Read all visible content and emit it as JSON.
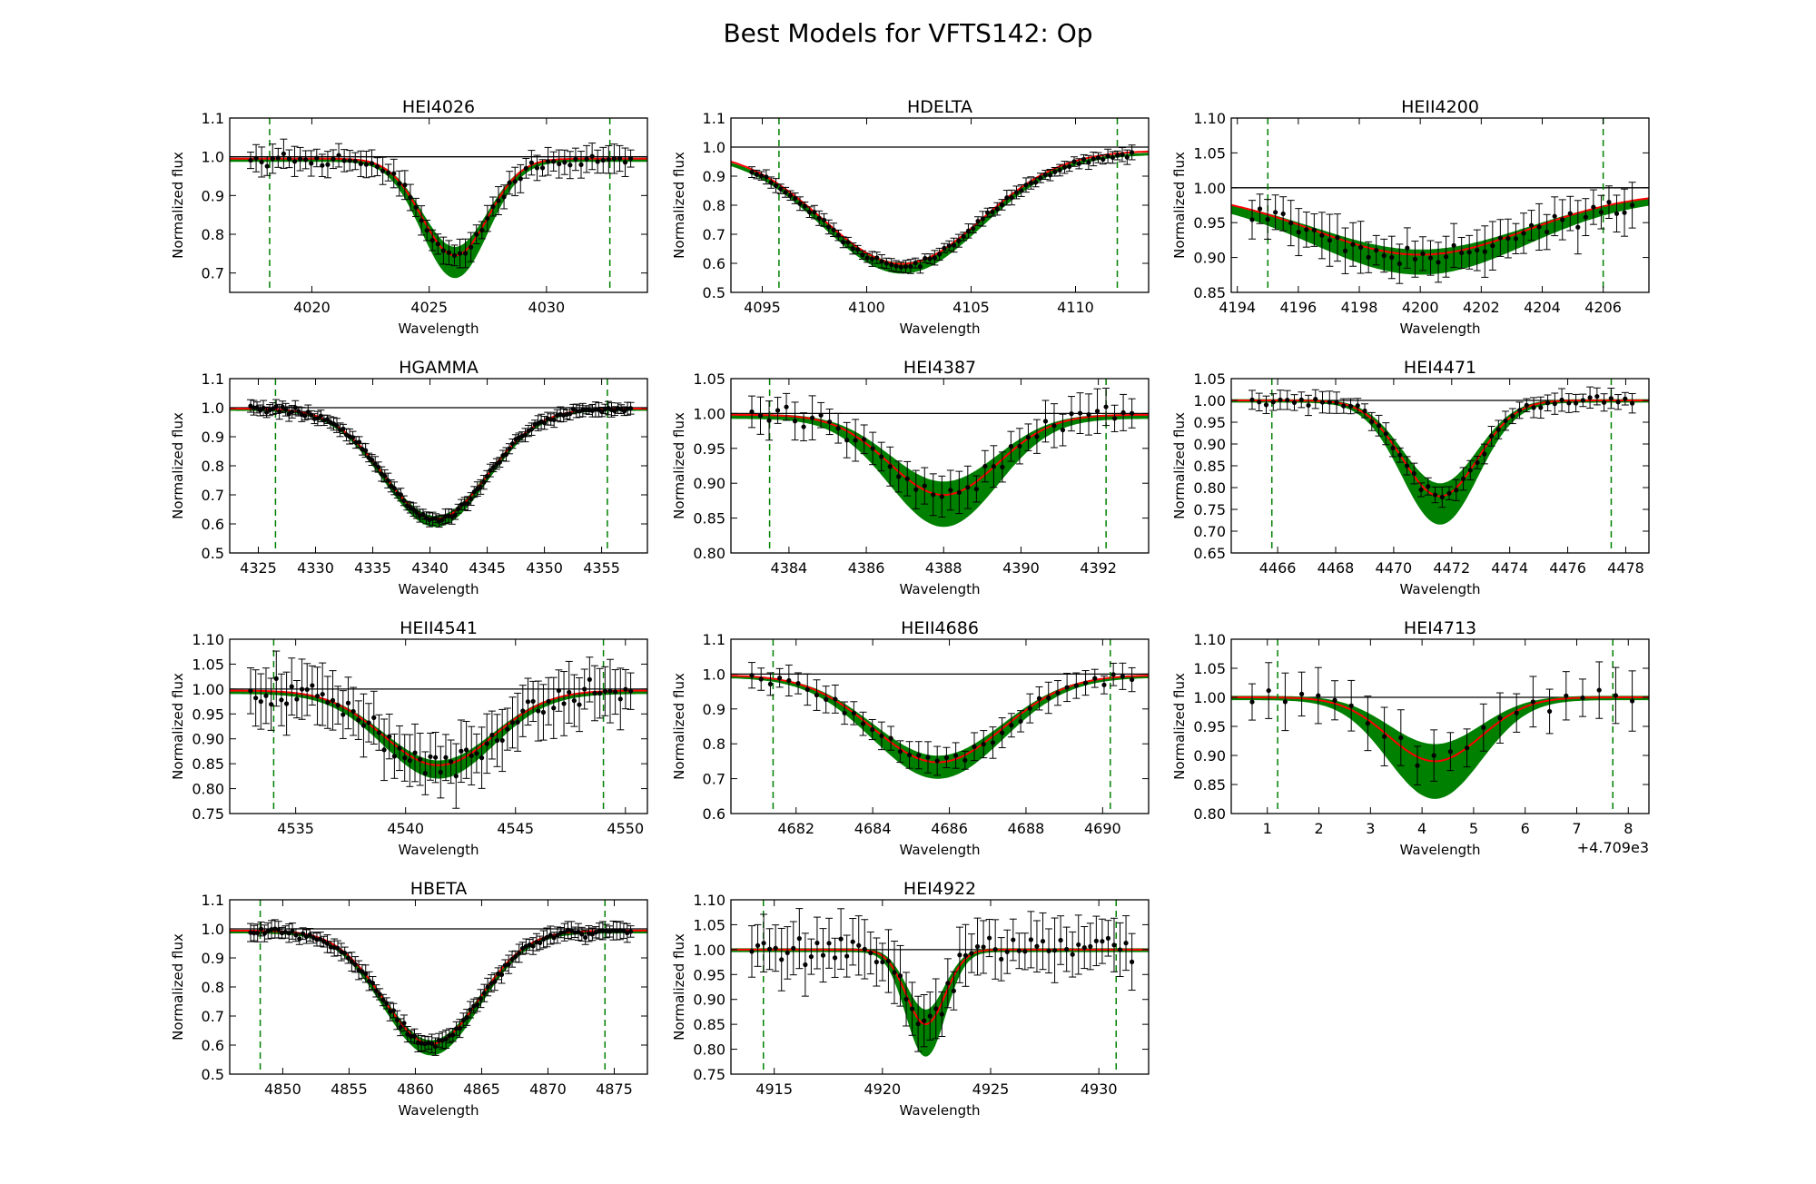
{
  "figure": {
    "title": "Best Models for VFTS142: Op"
  },
  "colors": {
    "model": "#ff0000",
    "envelope": "#008000",
    "data": "#000000",
    "window": "#008000",
    "continuum": "#000000"
  },
  "chart_data": [
    {
      "type": "line",
      "title": "HEI4026",
      "xlabel": "Wavelength",
      "ylabel": "Normalized flux",
      "xlim": [
        4016.5,
        4034.3
      ],
      "ylim": [
        0.65,
        1.1
      ],
      "xticks": [
        4020,
        4025,
        4030
      ],
      "xtick_labels": [
        "4020",
        "4025",
        "4030"
      ],
      "yticks": [
        0.7,
        0.8,
        0.9,
        1.0,
        1.1
      ],
      "ytick_labels": [
        "0.7",
        "0.8",
        "0.9",
        "1.0",
        "1.1"
      ],
      "window": [
        4018.2,
        4032.7
      ],
      "center": 4026.1,
      "depth": 0.25,
      "width": 1.4,
      "env": 0.05,
      "err": 0.03,
      "offset": 0.008,
      "n": 70
    },
    {
      "type": "line",
      "title": "HDELTA",
      "xlabel": "Wavelength",
      "ylabel": "Normalized flux",
      "xlim": [
        4093.5,
        4113.5
      ],
      "ylim": [
        0.5,
        1.1
      ],
      "xticks": [
        4095,
        4100,
        4105,
        4110
      ],
      "xtick_labels": [
        "4095",
        "4100",
        "4105",
        "4110"
      ],
      "yticks": [
        0.5,
        0.6,
        0.7,
        0.8,
        0.9,
        1.0,
        1.1
      ],
      "ytick_labels": [
        "0.5",
        "0.6",
        "0.7",
        "0.8",
        "0.9",
        "1.0",
        "1.1"
      ],
      "window": [
        4095.8,
        4112.0
      ],
      "center": 4101.7,
      "depth": 0.39,
      "width": 3.8,
      "env": 0.02,
      "err": 0.02,
      "offset": 0.02,
      "n": 80
    },
    {
      "type": "line",
      "title": "HEII4200",
      "xlabel": "Wavelength",
      "ylabel": "Normalized flux",
      "xlim": [
        4193.8,
        4207.5
      ],
      "ylim": [
        0.85,
        1.1
      ],
      "xticks": [
        4194,
        4196,
        4198,
        4200,
        4202,
        4204,
        4206
      ],
      "xtick_labels": [
        "4194",
        "4196",
        "4198",
        "4200",
        "4202",
        "4204",
        "4206"
      ],
      "yticks": [
        0.85,
        0.9,
        0.95,
        1.0,
        1.05,
        1.1
      ],
      "ytick_labels": [
        "0.85",
        "0.90",
        "0.95",
        "1.00",
        "1.05",
        "1.10"
      ],
      "window": [
        4195.0,
        4206.0
      ],
      "center": 4200.0,
      "depth": 0.09,
      "width": 3.5,
      "env": 0.02,
      "err": 0.03,
      "offset": 0.01,
      "n": 50
    },
    {
      "type": "line",
      "title": "HGAMMA",
      "xlabel": "Wavelength",
      "ylabel": "Normalized flux",
      "xlim": [
        4322.5,
        4359.0
      ],
      "ylim": [
        0.5,
        1.1
      ],
      "xticks": [
        4325,
        4330,
        4335,
        4340,
        4345,
        4350,
        4355
      ],
      "xtick_labels": [
        "4325",
        "4330",
        "4335",
        "4340",
        "4345",
        "4350",
        "4355"
      ],
      "yticks": [
        0.5,
        0.6,
        0.7,
        0.8,
        0.9,
        1.0,
        1.1
      ],
      "ytick_labels": [
        "0.5",
        "0.6",
        "0.7",
        "0.8",
        "0.9",
        "1.0",
        "1.1"
      ],
      "window": [
        4326.5,
        4355.5
      ],
      "center": 4340.5,
      "depth": 0.38,
      "width": 4.5,
      "env": 0.02,
      "err": 0.02,
      "offset": 0.005,
      "n": 120
    },
    {
      "type": "line",
      "title": "HEI4387",
      "xlabel": "Wavelength",
      "ylabel": "Normalized flux",
      "xlim": [
        4382.5,
        4393.3
      ],
      "ylim": [
        0.8,
        1.05
      ],
      "xticks": [
        4384,
        4386,
        4388,
        4390,
        4392
      ],
      "xtick_labels": [
        "4384",
        "4386",
        "4388",
        "4390",
        "4392"
      ],
      "yticks": [
        0.8,
        0.85,
        0.9,
        0.95,
        1.0,
        1.05
      ],
      "ytick_labels": [
        "0.80",
        "0.85",
        "0.90",
        "0.95",
        "1.00",
        "1.05"
      ],
      "window": [
        4383.5,
        4392.2
      ],
      "center": 4388.0,
      "depth": 0.115,
      "width": 1.4,
      "env": 0.04,
      "err": 0.025,
      "offset": 0.003,
      "n": 45
    },
    {
      "type": "line",
      "title": "HEI4471",
      "xlabel": "Wavelength",
      "ylabel": "Normalized flux",
      "xlim": [
        4464.4,
        4478.8
      ],
      "ylim": [
        0.65,
        1.05
      ],
      "xticks": [
        4466,
        4468,
        4470,
        4472,
        4474,
        4476,
        4478
      ],
      "xtick_labels": [
        "4466",
        "4468",
        "4470",
        "4472",
        "4474",
        "4476",
        "4478"
      ],
      "yticks": [
        0.65,
        0.7,
        0.75,
        0.8,
        0.85,
        0.9,
        0.95,
        1.0,
        1.05
      ],
      "ytick_labels": [
        "0.65",
        "0.70",
        "0.75",
        "0.80",
        "0.85",
        "0.90",
        "0.95",
        "1.00",
        "1.05"
      ],
      "window": [
        4465.8,
        4477.5
      ],
      "center": 4471.6,
      "depth": 0.22,
      "width": 1.3,
      "env": 0.06,
      "err": 0.02,
      "offset": 0.0,
      "n": 55
    },
    {
      "type": "line",
      "title": "HEII4541",
      "xlabel": "Wavelength",
      "ylabel": "Normalized flux",
      "xlim": [
        4532.0,
        4551.0
      ],
      "ylim": [
        0.75,
        1.1
      ],
      "xticks": [
        4535,
        4540,
        4545,
        4550
      ],
      "xtick_labels": [
        "4535",
        "4540",
        "4545",
        "4550"
      ],
      "yticks": [
        0.75,
        0.8,
        0.85,
        0.9,
        0.95,
        1.0,
        1.05,
        1.1
      ],
      "ytick_labels": [
        "0.75",
        "0.80",
        "0.85",
        "0.90",
        "0.95",
        "1.00",
        "1.05",
        "1.10"
      ],
      "window": [
        4534.0,
        4549.0
      ],
      "center": 4541.5,
      "depth": 0.15,
      "width": 2.5,
      "env": 0.02,
      "err": 0.05,
      "offset": 0.005,
      "n": 75
    },
    {
      "type": "line",
      "title": "HEII4686",
      "xlabel": "Wavelength",
      "ylabel": "Normalized flux",
      "xlim": [
        4680.3,
        4691.2
      ],
      "ylim": [
        0.6,
        1.1
      ],
      "xticks": [
        4682,
        4684,
        4686,
        4688,
        4690
      ],
      "xtick_labels": [
        "4682",
        "4684",
        "4686",
        "4688",
        "4690"
      ],
      "yticks": [
        0.6,
        0.7,
        0.8,
        0.9,
        1.0,
        1.1
      ],
      "ytick_labels": [
        "0.6",
        "0.7",
        "0.8",
        "0.9",
        "1.0",
        "1.1"
      ],
      "window": [
        4681.4,
        4690.2
      ],
      "center": 4685.7,
      "depth": 0.25,
      "width": 1.7,
      "env": 0.04,
      "err": 0.035,
      "offset": 0.005,
      "n": 42
    },
    {
      "type": "line",
      "title": "HEI4713",
      "xlabel": "Wavelength",
      "ylabel": "Normalized flux",
      "xlim": [
        0.3,
        8.4
      ],
      "ylim": [
        0.8,
        1.1
      ],
      "xticks": [
        1,
        2,
        3,
        4,
        5,
        6,
        7,
        8
      ],
      "xtick_labels": [
        "1",
        "2",
        "3",
        "4",
        "5",
        "6",
        "7",
        "8"
      ],
      "yticks": [
        0.8,
        0.85,
        0.9,
        0.95,
        1.0,
        1.05,
        1.1
      ],
      "ytick_labels": [
        "0.80",
        "0.85",
        "0.90",
        "0.95",
        "1.00",
        "1.05",
        "1.10"
      ],
      "offset_text": "+4.709e3",
      "window": [
        1.2,
        7.7
      ],
      "center": 4.25,
      "depth": 0.11,
      "width": 0.9,
      "env": 0.06,
      "err": 0.04,
      "offset": 0.0,
      "n": 24
    },
    {
      "type": "line",
      "title": "HBETA",
      "xlabel": "Wavelength",
      "ylabel": "Normalized flux",
      "xlim": [
        4846.0,
        4877.5
      ],
      "ylim": [
        0.5,
        1.1
      ],
      "xticks": [
        4850,
        4855,
        4860,
        4865,
        4870,
        4875
      ],
      "xtick_labels": [
        "4850",
        "4855",
        "4860",
        "4865",
        "4870",
        "4875"
      ],
      "yticks": [
        0.5,
        0.6,
        0.7,
        0.8,
        0.9,
        1.0,
        1.1
      ],
      "ytick_labels": [
        "0.5",
        "0.6",
        "0.7",
        "0.8",
        "0.9",
        "1.0",
        "1.1"
      ],
      "window": [
        4848.3,
        4874.3
      ],
      "center": 4861.2,
      "depth": 0.39,
      "width": 3.6,
      "env": 0.03,
      "err": 0.025,
      "offset": 0.01,
      "n": 110
    },
    {
      "type": "line",
      "title": "HEI4922",
      "xlabel": "Wavelength",
      "ylabel": "Normalized flux",
      "xlim": [
        4913.0,
        4932.3
      ],
      "ylim": [
        0.75,
        1.1
      ],
      "xticks": [
        4915,
        4920,
        4925,
        4930
      ],
      "xtick_labels": [
        "4915",
        "4920",
        "4925",
        "4930"
      ],
      "yticks": [
        0.75,
        0.8,
        0.85,
        0.9,
        0.95,
        1.0,
        1.05,
        1.1
      ],
      "ytick_labels": [
        "0.75",
        "0.80",
        "0.85",
        "0.90",
        "0.95",
        "1.00",
        "1.05",
        "1.10"
      ],
      "window": [
        4914.5,
        4930.8
      ],
      "center": 4922.0,
      "depth": 0.15,
      "width": 0.9,
      "env": 0.06,
      "err": 0.05,
      "offset": 0.0,
      "n": 65
    }
  ]
}
